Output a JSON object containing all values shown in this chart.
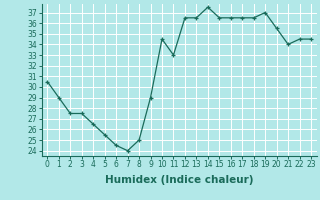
{
  "x": [
    0,
    1,
    2,
    3,
    4,
    5,
    6,
    7,
    8,
    9,
    10,
    11,
    12,
    13,
    14,
    15,
    16,
    17,
    18,
    19,
    20,
    21,
    22,
    23
  ],
  "y": [
    30.5,
    29.0,
    27.5,
    27.5,
    26.5,
    25.5,
    24.5,
    24.0,
    25.0,
    29.0,
    34.5,
    33.0,
    36.5,
    36.5,
    37.5,
    36.5,
    36.5,
    36.5,
    36.5,
    37.0,
    35.5,
    34.0,
    34.5,
    34.5
  ],
  "line_color": "#1a6b5a",
  "marker": "+",
  "marker_size": 3,
  "bg_color": "#b2e8e8",
  "grid_color": "#ffffff",
  "xlabel": "Humidex (Indice chaleur)",
  "xlim": [
    -0.5,
    23.5
  ],
  "ylim": [
    23.5,
    37.8
  ],
  "yticks": [
    24,
    25,
    26,
    27,
    28,
    29,
    30,
    31,
    32,
    33,
    34,
    35,
    36,
    37
  ],
  "xticks": [
    0,
    1,
    2,
    3,
    4,
    5,
    6,
    7,
    8,
    9,
    10,
    11,
    12,
    13,
    14,
    15,
    16,
    17,
    18,
    19,
    20,
    21,
    22,
    23
  ],
  "tick_fontsize": 5.5,
  "xlabel_fontsize": 7.5
}
